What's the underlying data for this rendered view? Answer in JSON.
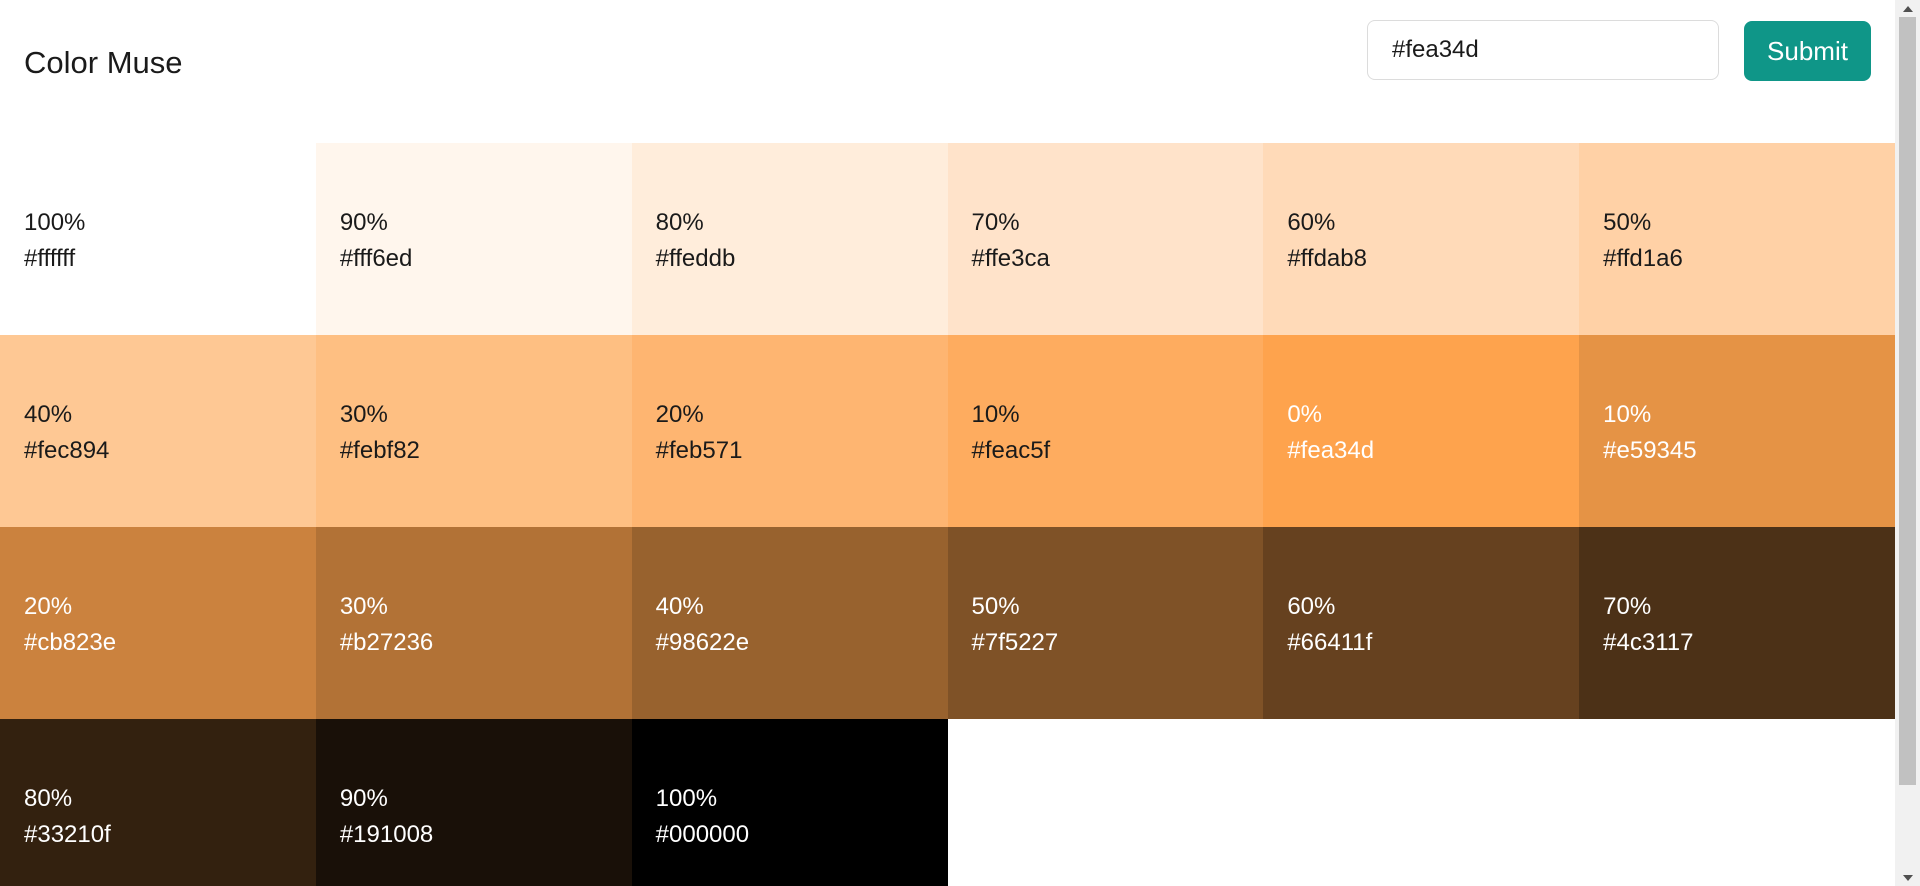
{
  "app": {
    "title": "Color Muse"
  },
  "toolbar": {
    "input_value": "#fea34d",
    "submit_label": "Submit",
    "accent_color": "#0f9688"
  },
  "swatches": [
    {
      "pct": "100%",
      "hex": "#ffffff",
      "text_color": "#1a1a1a"
    },
    {
      "pct": "90%",
      "hex": "#fff6ed",
      "text_color": "#1a1a1a"
    },
    {
      "pct": "80%",
      "hex": "#ffeddb",
      "text_color": "#1a1a1a"
    },
    {
      "pct": "70%",
      "hex": "#ffe3ca",
      "text_color": "#1a1a1a"
    },
    {
      "pct": "60%",
      "hex": "#ffdab8",
      "text_color": "#1a1a1a"
    },
    {
      "pct": "50%",
      "hex": "#ffd1a6",
      "text_color": "#1a1a1a"
    },
    {
      "pct": "40%",
      "hex": "#fec894",
      "text_color": "#1a1a1a"
    },
    {
      "pct": "30%",
      "hex": "#febf82",
      "text_color": "#1a1a1a"
    },
    {
      "pct": "20%",
      "hex": "#feb571",
      "text_color": "#1a1a1a"
    },
    {
      "pct": "10%",
      "hex": "#feac5f",
      "text_color": "#1a1a1a"
    },
    {
      "pct": "0%",
      "hex": "#fea34d",
      "text_color": "#ffffff"
    },
    {
      "pct": "10%",
      "hex": "#e59345",
      "text_color": "#ffffff"
    },
    {
      "pct": "20%",
      "hex": "#cb823e",
      "text_color": "#ffffff"
    },
    {
      "pct": "30%",
      "hex": "#b27236",
      "text_color": "#ffffff"
    },
    {
      "pct": "40%",
      "hex": "#98622e",
      "text_color": "#ffffff"
    },
    {
      "pct": "50%",
      "hex": "#7f5227",
      "text_color": "#ffffff"
    },
    {
      "pct": "60%",
      "hex": "#66411f",
      "text_color": "#ffffff"
    },
    {
      "pct": "70%",
      "hex": "#4c3117",
      "text_color": "#ffffff"
    },
    {
      "pct": "80%",
      "hex": "#33210f",
      "text_color": "#ffffff"
    },
    {
      "pct": "90%",
      "hex": "#191008",
      "text_color": "#ffffff"
    },
    {
      "pct": "100%",
      "hex": "#000000",
      "text_color": "#ffffff"
    }
  ]
}
